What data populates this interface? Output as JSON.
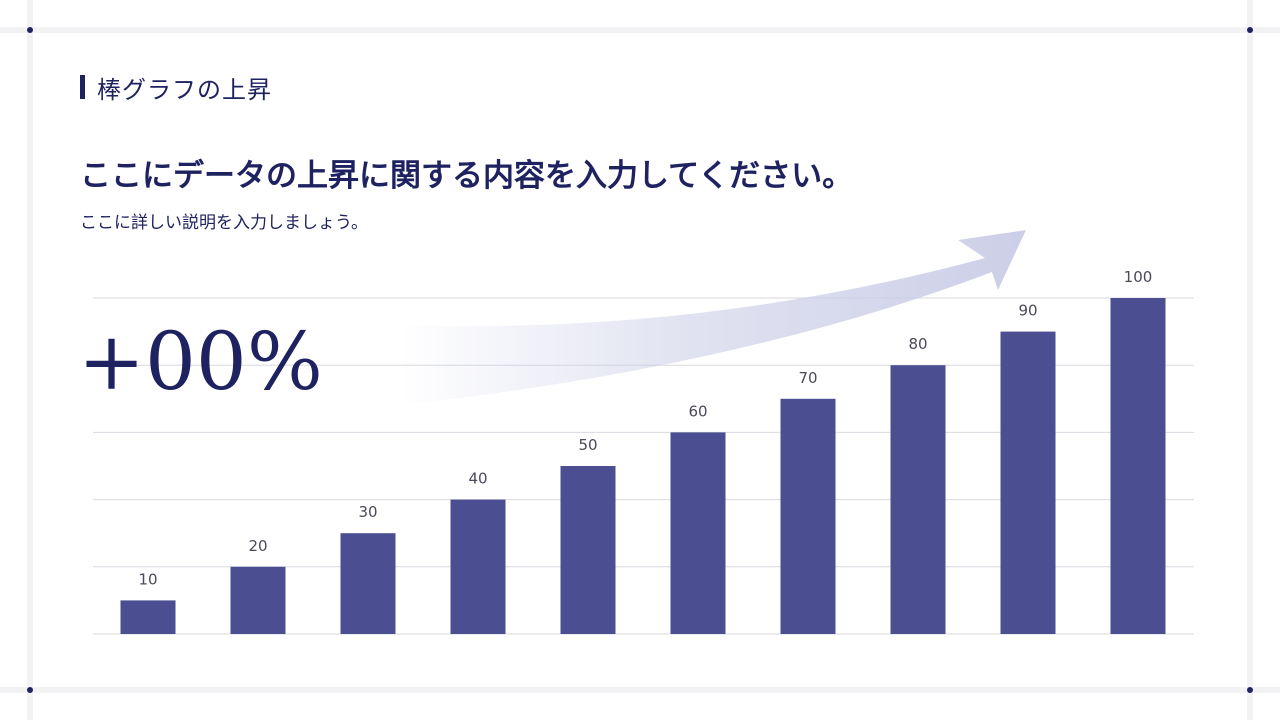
{
  "section_label": "棒グラフの上昇",
  "headline": "ここにデータの上昇に関する内容を入力してください。",
  "subtext": "ここに詳しい説明を入力しましょう。",
  "highlight_value": "+00%",
  "colors": {
    "accent": "#1f2260",
    "bar": "#4b4f91",
    "gridline": "#d8d8e0",
    "arrow": "#c9cce6"
  },
  "chart_data": {
    "type": "bar",
    "categories": [
      "",
      "",
      "",
      "",
      "",
      "",
      "",
      "",
      "",
      ""
    ],
    "values": [
      10,
      20,
      30,
      40,
      50,
      60,
      70,
      80,
      90,
      100
    ],
    "data_labels": [
      "10",
      "20",
      "30",
      "40",
      "50",
      "60",
      "70",
      "80",
      "90",
      "100"
    ],
    "title": "",
    "xlabel": "",
    "ylabel": "",
    "ylim": [
      0,
      100
    ],
    "grid": true,
    "legend": "none"
  }
}
